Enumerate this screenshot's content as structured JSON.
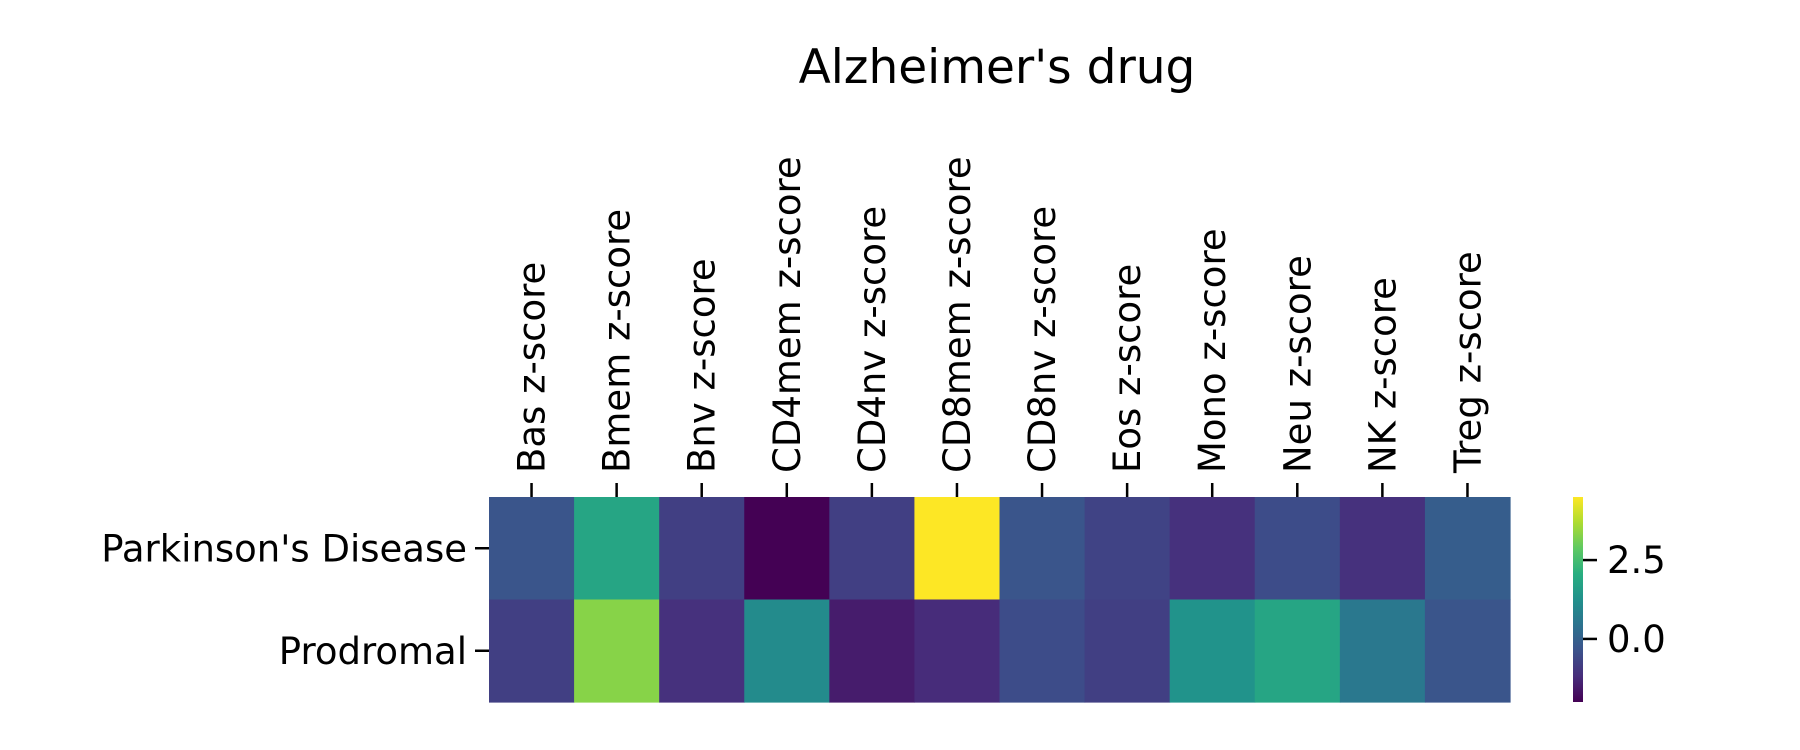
{
  "chart_data": {
    "type": "heatmap",
    "title": "Alzheimer's drug",
    "xlabel": "",
    "ylabel": "",
    "columns": [
      "Bas z-score",
      "Bmem z-score",
      "Bnv z-score",
      "CD4mem z-score",
      "CD4nv z-score",
      "CD8mem z-score",
      "CD8nv z-score",
      "Eos z-score",
      "Mono z-score",
      "Neu z-score",
      "NK z-score",
      "Treg z-score"
    ],
    "rows": [
      "Parkinson's Disease",
      "Prodromal"
    ],
    "values": [
      [
        -0.3,
        1.8,
        -0.8,
        -2.0,
        -0.8,
        4.5,
        -0.3,
        -0.7,
        -1.1,
        -0.5,
        -1.1,
        -0.1
      ],
      [
        -0.8,
        3.3,
        -1.1,
        1.1,
        -1.5,
        -1.2,
        -0.5,
        -0.8,
        1.3,
        1.8,
        0.6,
        -0.3
      ]
    ],
    "colormap": "viridis",
    "color_range": [
      -2.0,
      4.5
    ],
    "colorbar_ticks": [
      {
        "value": 0.0,
        "label": "0.0"
      },
      {
        "value": 2.5,
        "label": "2.5"
      }
    ],
    "grid": false,
    "legend": "colorbar-right"
  }
}
